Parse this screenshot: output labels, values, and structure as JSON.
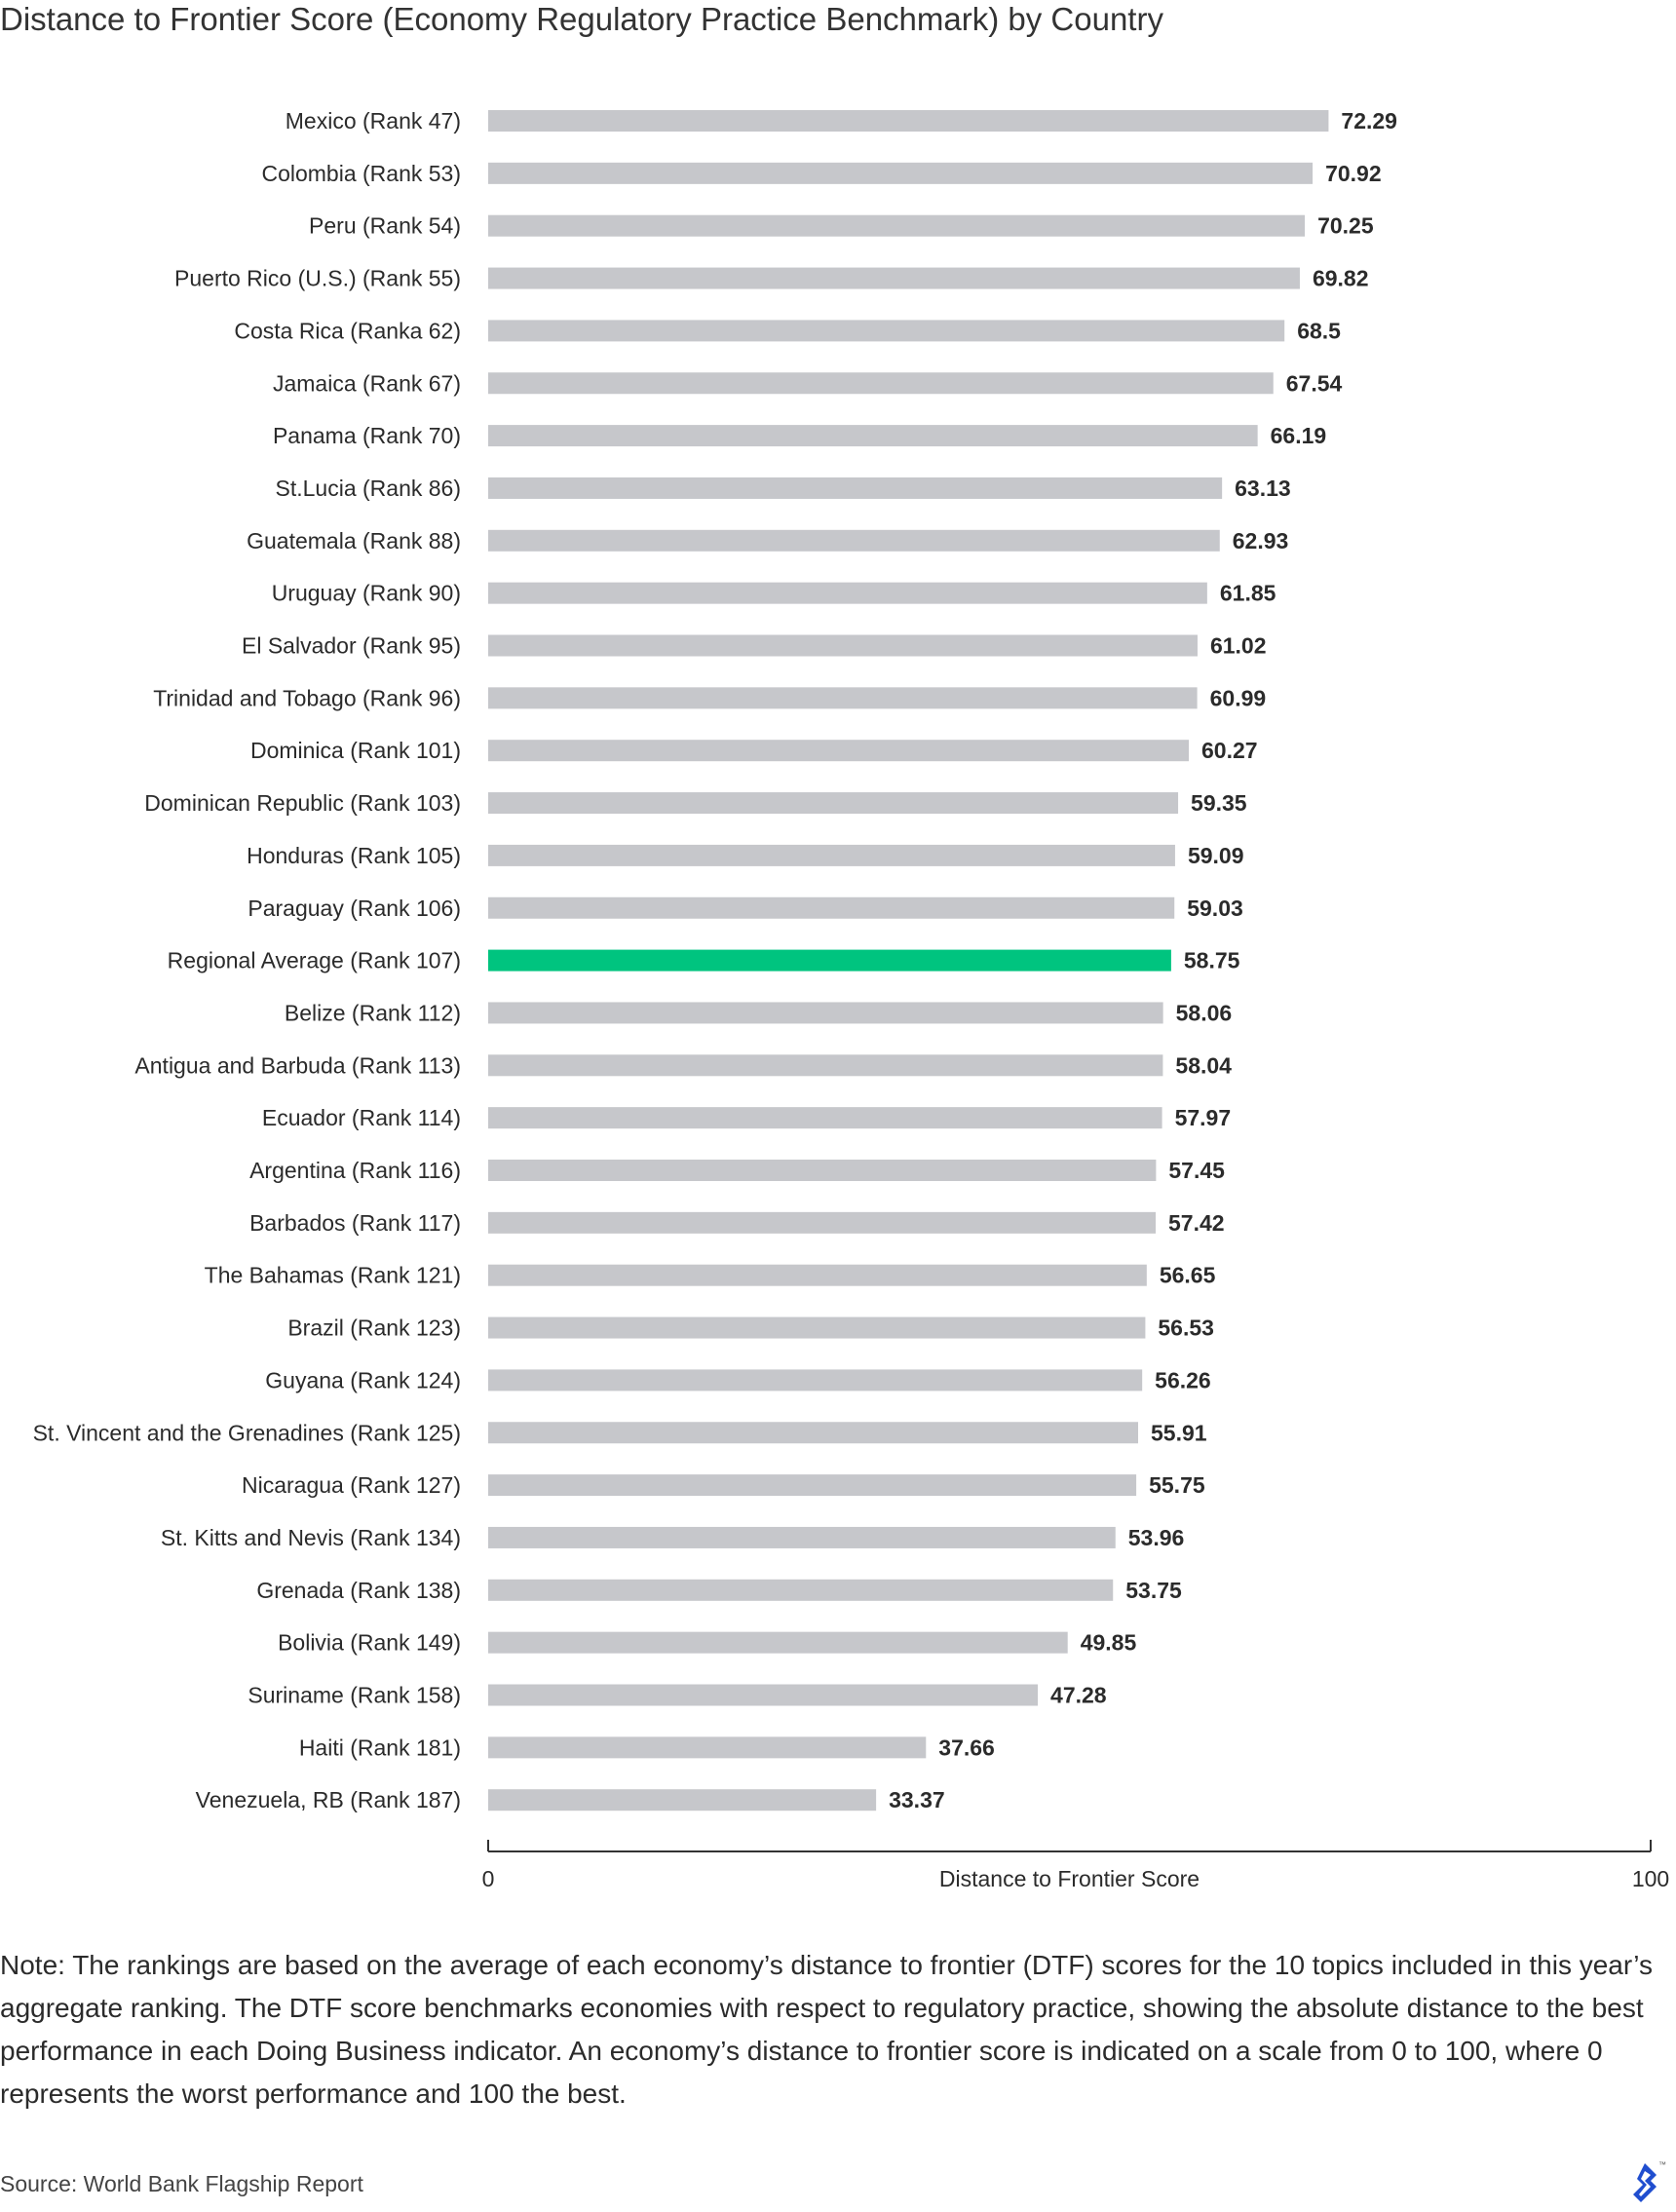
{
  "chart_data": {
    "type": "bar",
    "orientation": "horizontal",
    "title": "Distance to Frontier Score (Economy Regulatory Practice Benchmark) by Country",
    "xlabel": "Distance to Frontier Score",
    "xlim": [
      0,
      100
    ],
    "tick_labels": [
      "0",
      "100"
    ],
    "categories": [
      "Mexico (Rank 47)",
      "Colombia (Rank 53)",
      "Peru (Rank 54)",
      "Puerto Rico (U.S.) (Rank 55)",
      "Costa Rica (Ranka 62)",
      "Jamaica (Rank 67)",
      "Panama (Rank 70)",
      "St.Lucia (Rank 86)",
      "Guatemala (Rank 88)",
      "Uruguay (Rank 90)",
      "El Salvador (Rank 95)",
      "Trinidad and Tobago (Rank 96)",
      "Dominica (Rank 101)",
      "Dominican Republic (Rank 103)",
      "Honduras (Rank 105)",
      "Paraguay (Rank 106)",
      "Regional Average (Rank 107)",
      "Belize (Rank 112)",
      "Antigua and Barbuda (Rank 113)",
      "Ecuador (Rank 114)",
      "Argentina (Rank 116)",
      "Barbados (Rank 117)",
      "The Bahamas (Rank 121)",
      "Brazil (Rank 123)",
      "Guyana (Rank 124)",
      "St. Vincent and the Grenadines (Rank 125)",
      "Nicaragua (Rank 127)",
      "St. Kitts and Nevis (Rank 134)",
      "Grenada (Rank 138)",
      "Bolivia (Rank 149)",
      "Suriname (Rank 158)",
      "Haiti (Rank 181)",
      "Venezuela, RB (Rank 187)"
    ],
    "values": [
      72.29,
      70.92,
      70.25,
      69.82,
      68.5,
      67.54,
      66.19,
      63.13,
      62.93,
      61.85,
      61.02,
      60.99,
      60.27,
      59.35,
      59.09,
      59.03,
      58.75,
      58.06,
      58.04,
      57.97,
      57.45,
      57.42,
      56.65,
      56.53,
      56.26,
      55.91,
      55.75,
      53.96,
      53.75,
      49.85,
      47.28,
      37.66,
      33.37
    ],
    "value_labels": [
      "72.29",
      "70.92",
      "70.25",
      "69.82",
      "68.5",
      "67.54",
      "66.19",
      "63.13",
      "62.93",
      "61.85",
      "61.02",
      "60.99",
      "60.27",
      "59.35",
      "59.09",
      "59.03",
      "58.75",
      "58.06",
      "58.04",
      "57.97",
      "57.45",
      "57.42",
      "56.65",
      "56.53",
      "56.26",
      "55.91",
      "55.75",
      "53.96",
      "53.75",
      "49.85",
      "47.28",
      "37.66",
      "33.37"
    ],
    "highlight_category": "Regional Average (Rank 107)",
    "colors": {
      "bar": "#c6c7cb",
      "highlight": "#00c47f",
      "axis": "#333333"
    },
    "grid": false,
    "legend": "none"
  },
  "note": "Note: The rankings are based on the average of each economy’s distance to frontier (DTF) scores for the 10 topics included in this year’s aggregate ranking. The DTF score benchmarks economies with respect to regulatory practice, showing the absolute distance to the best performance in each Doing Business indicator. An economy’s distance to frontier score is indicated on a scale from 0 to 100, where 0 represents the worst performance and 100 the best.",
  "source": "Source: World Bank Flagship Report",
  "logo": {
    "icon": "brand-logo-icon",
    "color": "#204ecf"
  }
}
